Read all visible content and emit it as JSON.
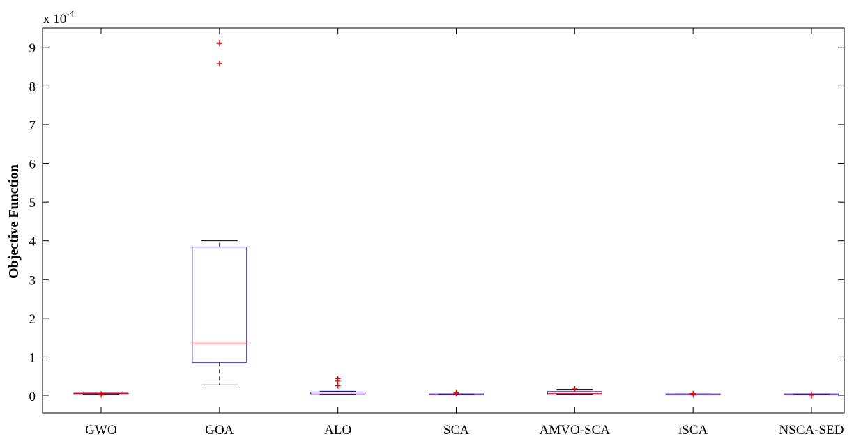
{
  "chart_data": {
    "type": "box",
    "title": "",
    "xlabel": "",
    "ylabel": "Objective Function",
    "y_scale_base": "x 10",
    "y_scale_exponent": "-4",
    "ylim": [
      -0.45,
      9.5
    ],
    "yticks": [
      0,
      1,
      2,
      3,
      4,
      5,
      6,
      7,
      8,
      9
    ],
    "grid": false,
    "legend": "none",
    "categories": [
      "GWO",
      "GOA",
      "ALO",
      "SCA",
      "AMVO-SCA",
      "iSCA",
      "NSCA-SED"
    ],
    "boxes": [
      {
        "whisker_low": 0.03,
        "q1": 0.04,
        "median": 0.06,
        "q3": 0.07,
        "whisker_high": 0.07,
        "outliers": [
          0.03,
          0.05
        ]
      },
      {
        "whisker_low": 0.28,
        "q1": 0.86,
        "median": 1.36,
        "q3": 3.84,
        "whisker_high": 4.0,
        "outliers": [
          8.58,
          9.1
        ]
      },
      {
        "whisker_low": 0.03,
        "q1": 0.04,
        "median": 0.05,
        "q3": 0.1,
        "whisker_high": 0.12,
        "outliers": [
          0.26,
          0.38,
          0.44
        ]
      },
      {
        "whisker_low": 0.03,
        "q1": 0.04,
        "median": 0.04,
        "q3": 0.05,
        "whisker_high": 0.05,
        "outliers": [
          0.06,
          0.08
        ]
      },
      {
        "whisker_low": 0.03,
        "q1": 0.04,
        "median": 0.06,
        "q3": 0.11,
        "whisker_high": 0.15,
        "outliers": [
          0.18
        ]
      },
      {
        "whisker_low": 0.04,
        "q1": 0.04,
        "median": 0.04,
        "q3": 0.05,
        "whisker_high": 0.05,
        "outliers": [
          0.03,
          0.06
        ]
      },
      {
        "whisker_low": 0.03,
        "q1": 0.04,
        "median": 0.04,
        "q3": 0.05,
        "whisker_high": 0.05,
        "outliers": [
          0.0,
          0.04
        ]
      }
    ],
    "colors": {
      "box": "#0000ff",
      "median": "#ff0000",
      "whisker": "#000000",
      "outlier": "#ff0000",
      "axes": "#000000"
    }
  }
}
